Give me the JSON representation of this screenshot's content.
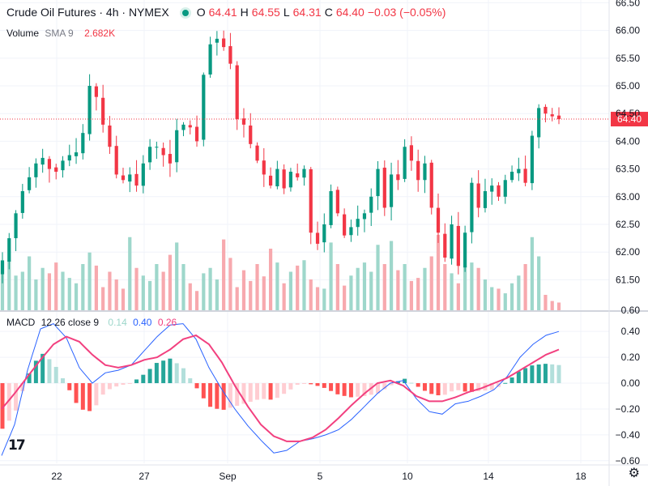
{
  "header": {
    "title": "Crude Oil Futures · 4h · NYMEX",
    "o_label": "O",
    "o": "64.41",
    "h_label": "H",
    "h": "64.55",
    "l_label": "L",
    "l": "64.31",
    "c_label": "C",
    "c": "64.40",
    "change": "−0.03 (−0.05%)"
  },
  "volume_legend": {
    "label": "Volume",
    "ma": "SMA 9",
    "value": "2.682K"
  },
  "macd_legend": {
    "label": "MACD",
    "params": "12 26 close 9",
    "hist": "0.14",
    "macd": "0.40",
    "signal": "0.26"
  },
  "price_badge": "64.40",
  "logo_text": "17",
  "settings_icon": "gear-icon",
  "colors": {
    "up": "#089981",
    "down": "#f23645",
    "up_vol": "#9ed7cb",
    "down_vol": "#f7a9ae",
    "macd": "#2962ff",
    "signal": "#f2407f"
  },
  "chart_data": {
    "type": "candlestick",
    "x_ticks": [
      "22",
      "27",
      "Sep",
      "5",
      "10",
      "14",
      "18"
    ],
    "price_axis": {
      "ticks": [
        "66.50",
        "66.00",
        "65.50",
        "65.00",
        "64.50",
        "64.00",
        "63.50",
        "63.00",
        "62.50",
        "62.00",
        "61.50"
      ],
      "range": [
        60.95,
        66.55
      ]
    },
    "macd_axis": {
      "ticks": [
        "0.40",
        "0.20",
        "0.00",
        "−0.20",
        "−0.40",
        "−0.60"
      ],
      "range": [
        -0.62,
        0.47
      ]
    },
    "price_path": [
      61.85,
      62.25,
      62.7,
      63.1,
      63.35,
      63.6,
      63.7,
      63.5,
      63.45,
      63.65,
      63.75,
      63.8,
      64.15,
      65.0,
      64.8,
      64.3,
      63.9,
      63.4,
      63.3,
      63.4,
      63.2,
      63.6,
      63.9,
      63.9,
      63.75,
      63.6,
      64.2,
      64.3,
      64.25,
      64.0,
      65.2,
      65.75,
      65.85,
      65.7,
      65.4,
      64.4,
      64.3,
      63.95,
      63.65,
      63.4,
      63.2,
      63.5,
      63.15,
      63.45,
      63.35,
      63.5,
      62.35,
      62.15,
      62.5,
      63.1,
      62.7,
      62.3,
      62.45,
      62.6,
      62.7,
      63.0,
      63.5,
      62.8,
      63.4,
      63.3,
      63.9,
      63.65,
      63.3,
      63.6,
      62.8,
      62.35,
      61.9,
      62.5,
      61.75,
      62.35,
      63.25,
      62.8,
      63.1,
      63.2,
      63.0,
      63.3,
      63.45,
      63.5,
      63.25,
      64.1,
      64.6,
      64.5,
      64.45,
      64.4
    ],
    "volume": [
      0.62,
      0.65,
      0.45,
      0.5,
      0.7,
      0.4,
      0.55,
      0.48,
      0.62,
      0.5,
      0.42,
      0.35,
      0.6,
      0.75,
      0.58,
      0.3,
      0.5,
      0.4,
      0.28,
      0.95,
      0.55,
      0.45,
      0.38,
      0.6,
      0.5,
      0.72,
      0.88,
      0.6,
      0.35,
      0.25,
      0.48,
      0.55,
      0.4,
      0.92,
      0.68,
      0.3,
      0.52,
      0.38,
      0.6,
      0.44,
      0.8,
      0.62,
      0.35,
      0.5,
      0.58,
      0.65,
      0.4,
      0.3,
      0.28,
      0.88,
      0.6,
      0.32,
      0.45,
      0.55,
      0.62,
      0.5,
      0.85,
      0.6,
      0.9,
      0.52,
      0.6,
      0.38,
      0.42,
      0.55,
      0.7,
      0.98,
      0.6,
      0.48,
      0.35,
      0.58,
      0.62,
      0.55,
      0.4,
      0.3,
      0.28,
      0.22,
      0.35,
      0.45,
      0.6,
      0.95,
      0.7,
      0.2,
      0.12,
      0.1
    ],
    "macd_points": [
      [
        0,
        -0.56
      ],
      [
        6,
        -0.32
      ],
      [
        12,
        0.1
      ],
      [
        18,
        0.42
      ],
      [
        24,
        0.46
      ],
      [
        30,
        0.35
      ],
      [
        36,
        0.12
      ],
      [
        42,
        0.0
      ],
      [
        48,
        0.08
      ],
      [
        54,
        0.1
      ],
      [
        60,
        0.14
      ],
      [
        66,
        0.25
      ],
      [
        72,
        0.36
      ],
      [
        78,
        0.45
      ],
      [
        84,
        0.46
      ],
      [
        90,
        0.34
      ],
      [
        96,
        0.12
      ],
      [
        102,
        -0.05
      ],
      [
        108,
        -0.2
      ],
      [
        114,
        -0.33
      ],
      [
        120,
        -0.44
      ],
      [
        126,
        -0.54
      ],
      [
        132,
        -0.52
      ],
      [
        138,
        -0.45
      ],
      [
        144,
        -0.43
      ],
      [
        150,
        -0.4
      ],
      [
        156,
        -0.36
      ],
      [
        162,
        -0.28
      ],
      [
        168,
        -0.18
      ],
      [
        174,
        -0.08
      ],
      [
        180,
        0.0
      ],
      [
        186,
        0.02
      ],
      [
        192,
        -0.12
      ],
      [
        198,
        -0.22
      ],
      [
        204,
        -0.24
      ],
      [
        210,
        -0.16
      ],
      [
        216,
        -0.14
      ],
      [
        222,
        -0.1
      ],
      [
        228,
        -0.05
      ],
      [
        234,
        0.05
      ],
      [
        240,
        0.2
      ],
      [
        246,
        0.3
      ],
      [
        252,
        0.37
      ],
      [
        258,
        0.4
      ]
    ],
    "signal_points": [
      [
        0,
        -0.2
      ],
      [
        6,
        -0.08
      ],
      [
        12,
        0.05
      ],
      [
        18,
        0.18
      ],
      [
        24,
        0.3
      ],
      [
        30,
        0.36
      ],
      [
        36,
        0.32
      ],
      [
        42,
        0.22
      ],
      [
        48,
        0.14
      ],
      [
        54,
        0.12
      ],
      [
        60,
        0.14
      ],
      [
        66,
        0.18
      ],
      [
        72,
        0.2
      ],
      [
        78,
        0.26
      ],
      [
        84,
        0.34
      ],
      [
        90,
        0.37
      ],
      [
        96,
        0.3
      ],
      [
        102,
        0.16
      ],
      [
        108,
        -0.02
      ],
      [
        114,
        -0.18
      ],
      [
        120,
        -0.32
      ],
      [
        126,
        -0.41
      ],
      [
        132,
        -0.45
      ],
      [
        138,
        -0.45
      ],
      [
        144,
        -0.42
      ],
      [
        150,
        -0.36
      ],
      [
        156,
        -0.27
      ],
      [
        162,
        -0.17
      ],
      [
        168,
        -0.08
      ],
      [
        174,
        0.0
      ],
      [
        180,
        0.02
      ],
      [
        186,
        -0.02
      ],
      [
        192,
        -0.1
      ],
      [
        198,
        -0.14
      ],
      [
        204,
        -0.14
      ],
      [
        210,
        -0.11
      ],
      [
        216,
        -0.07
      ],
      [
        222,
        -0.04
      ],
      [
        228,
        0.0
      ],
      [
        234,
        0.04
      ],
      [
        240,
        0.1
      ],
      [
        246,
        0.16
      ],
      [
        252,
        0.22
      ],
      [
        258,
        0.26
      ]
    ]
  }
}
